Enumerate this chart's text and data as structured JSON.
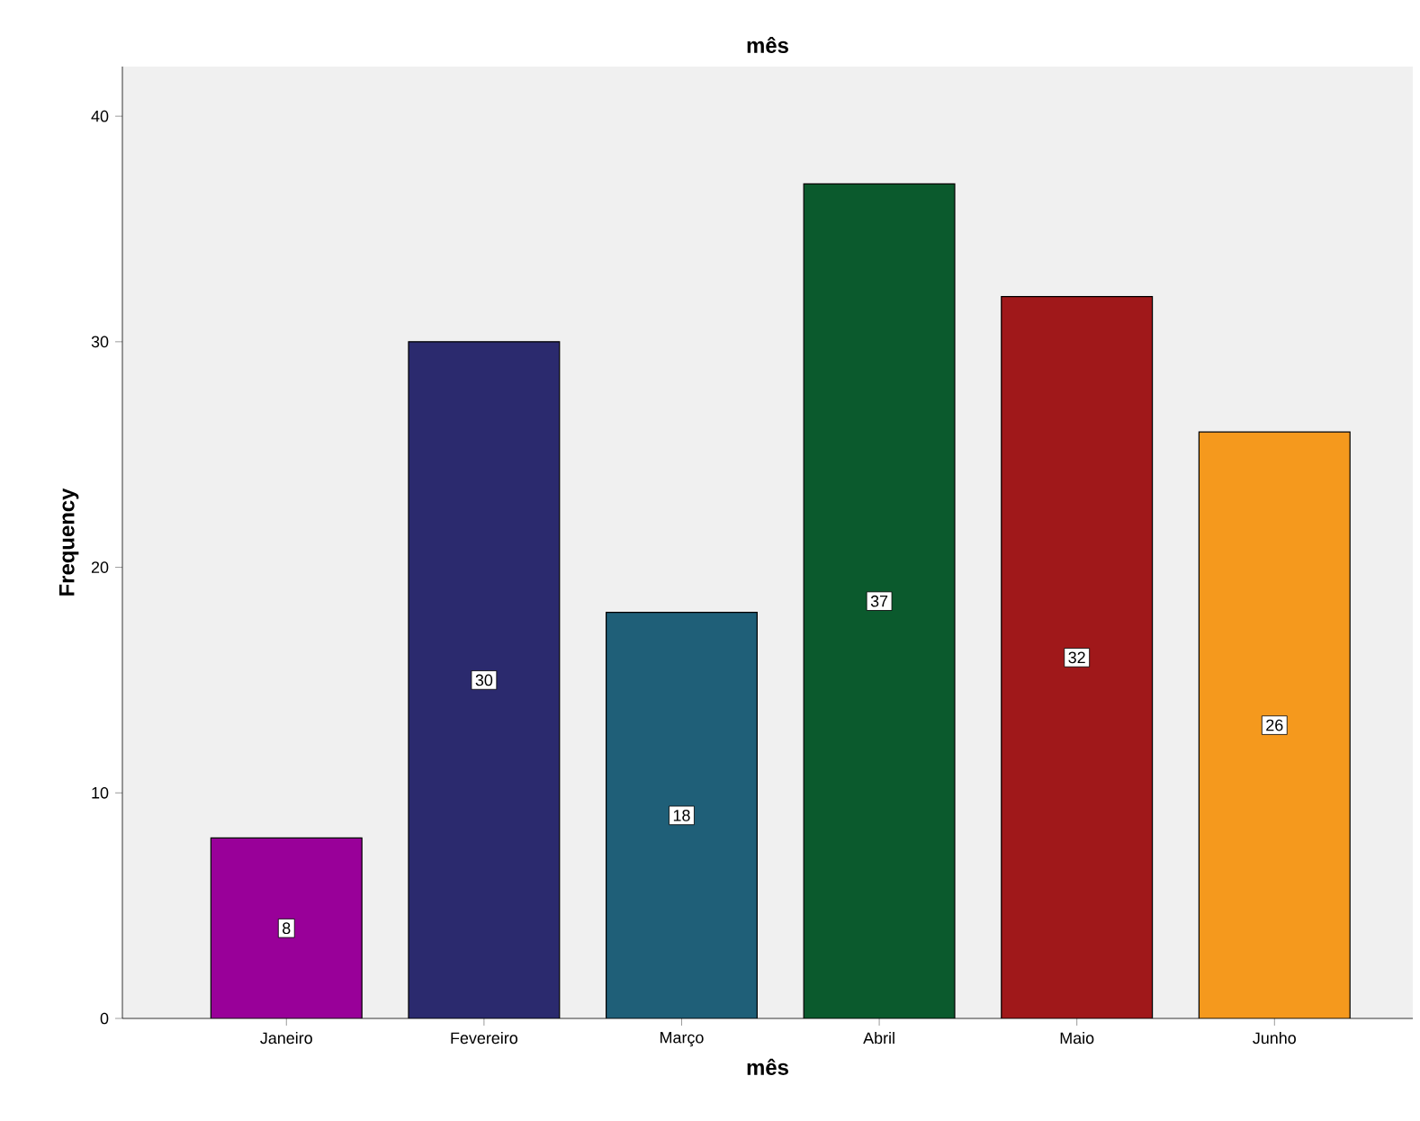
{
  "chart_data": {
    "type": "bar",
    "title": "mês",
    "xlabel": "mês",
    "ylabel": "Frequency",
    "categories": [
      "Janeiro",
      "Fevereiro",
      "Março",
      "Abril",
      "Maio",
      "Junho"
    ],
    "values": [
      8,
      30,
      18,
      37,
      32,
      26
    ],
    "colors": [
      "#990099",
      "#2b2a6e",
      "#1f5f78",
      "#0b5a2d",
      "#a0181a",
      "#f5991d"
    ],
    "ylim": [
      0,
      42.2
    ],
    "yticks": [
      0,
      10,
      20,
      30,
      40
    ],
    "data_labels": true,
    "grid": false
  }
}
